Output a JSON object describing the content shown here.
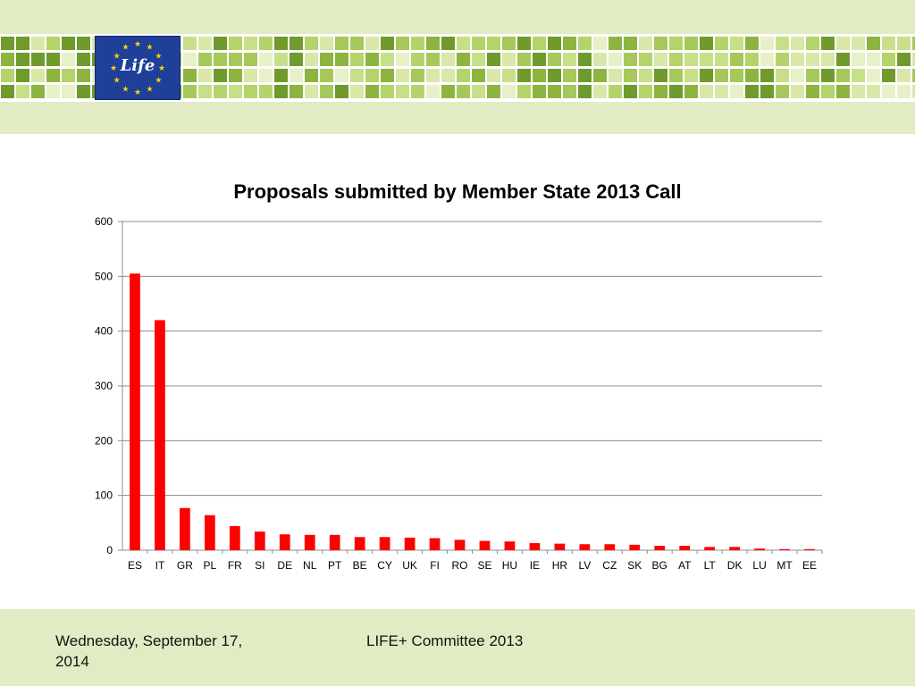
{
  "logo": {
    "text": "Life",
    "colors": {
      "background": "#1f3f98",
      "stars": "#ffd500"
    }
  },
  "footer": {
    "date": "Wednesday, September 17, 2014",
    "center": "LIFE+ Committee 2013"
  },
  "chart_data": {
    "type": "bar",
    "title": "Proposals submitted by Member State 2013 Call",
    "xlabel": "",
    "ylabel": "",
    "ylim": [
      0,
      600
    ],
    "yticks": [
      0,
      100,
      200,
      300,
      400,
      500,
      600
    ],
    "grid": true,
    "legend": "none",
    "bar_color": "#ff0000",
    "categories": [
      "ES",
      "IT",
      "GR",
      "PL",
      "FR",
      "SI",
      "DE",
      "NL",
      "PT",
      "BE",
      "CY",
      "UK",
      "FI",
      "RO",
      "SE",
      "HU",
      "IE",
      "HR",
      "LV",
      "CZ",
      "SK",
      "BG",
      "AT",
      "LT",
      "DK",
      "LU",
      "MT",
      "EE"
    ],
    "values": [
      505,
      420,
      77,
      64,
      44,
      34,
      29,
      28,
      28,
      24,
      24,
      23,
      22,
      19,
      17,
      16,
      13,
      12,
      11,
      11,
      10,
      8,
      8,
      6,
      6,
      3,
      2,
      2
    ]
  }
}
